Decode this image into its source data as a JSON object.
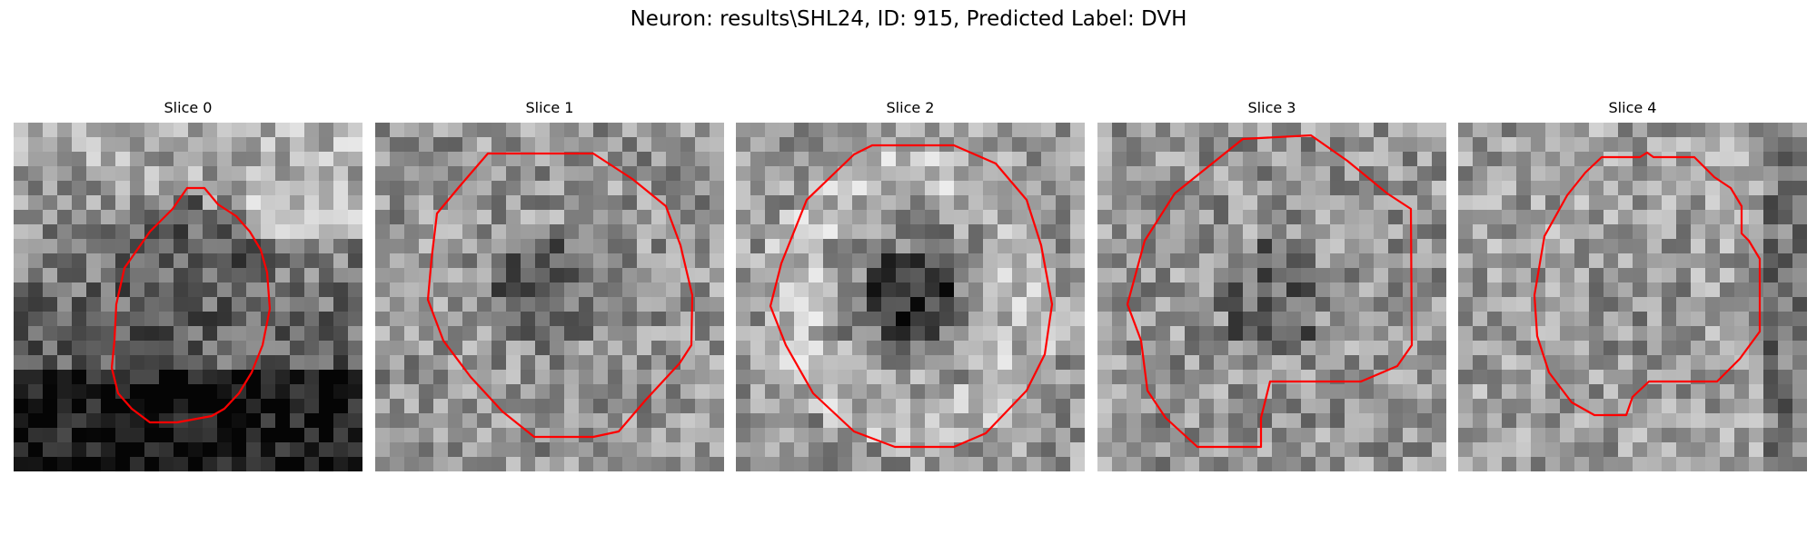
{
  "figure": {
    "title": "Neuron: results\\SHL24, ID: 915, Predicted Label: DVH",
    "contour_color": "#ff0000",
    "grid_cells": 24
  },
  "panels": [
    {
      "title": "Slice 0",
      "tone": "dark-bottom"
    },
    {
      "title": "Slice 1",
      "tone": "mid-gray"
    },
    {
      "title": "Slice 2",
      "tone": "bright-ring"
    },
    {
      "title": "Slice 3",
      "tone": "mid-gray"
    },
    {
      "title": "Slice 4",
      "tone": "light-gray"
    }
  ]
}
